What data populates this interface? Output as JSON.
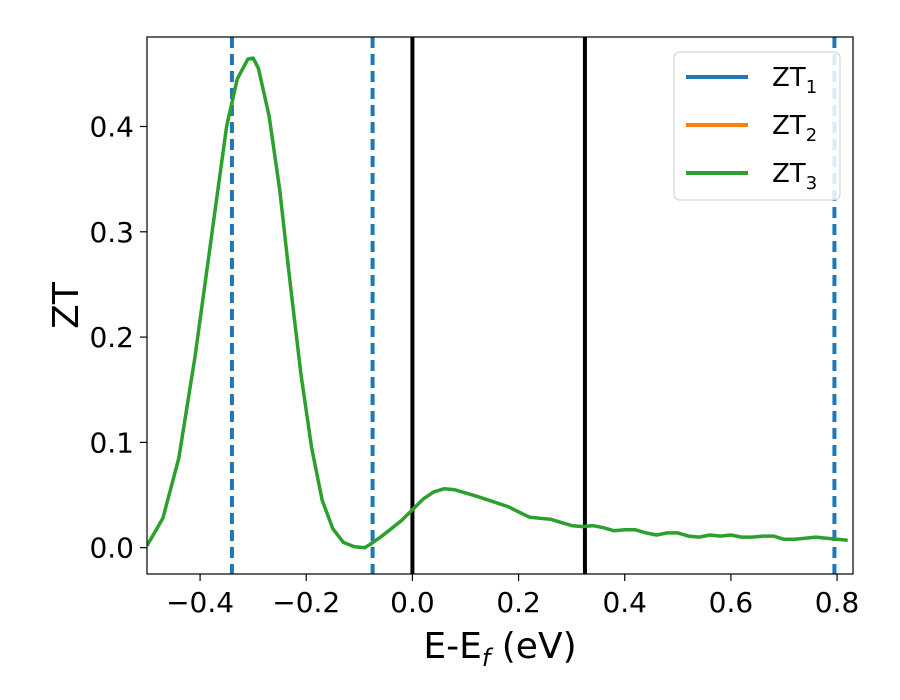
{
  "chart_data": {
    "type": "line",
    "title": "",
    "xlabel": {
      "main": "E-E",
      "sub": "f",
      "unit": " (eV)"
    },
    "ylabel": "ZT",
    "xlim": [
      -0.5,
      0.83
    ],
    "ylim": [
      -0.025,
      0.485
    ],
    "xticks": [
      -0.4,
      -0.2,
      0.0,
      0.2,
      0.4,
      0.6,
      0.8
    ],
    "xtick_labels": [
      "−0.4",
      "−0.2",
      "0.0",
      "0.2",
      "0.4",
      "0.6",
      "0.8"
    ],
    "yticks": [
      0.0,
      0.1,
      0.2,
      0.3,
      0.4
    ],
    "ytick_labels": [
      "0.0",
      "0.1",
      "0.2",
      "0.3",
      "0.4"
    ],
    "grid": false,
    "legend_position": "top-right",
    "series": [
      {
        "name": "ZT",
        "sub": "1",
        "color": "#1f77b4"
      },
      {
        "name": "ZT",
        "sub": "2",
        "color": "#ff7f0e"
      },
      {
        "name": "ZT",
        "sub": "3",
        "color": "#2ca02c",
        "x": [
          -0.5,
          -0.47,
          -0.44,
          -0.41,
          -0.38,
          -0.35,
          -0.33,
          -0.31,
          -0.3,
          -0.29,
          -0.27,
          -0.25,
          -0.23,
          -0.21,
          -0.19,
          -0.17,
          -0.15,
          -0.13,
          -0.11,
          -0.09,
          -0.08,
          -0.06,
          -0.04,
          -0.02,
          0.0,
          0.02,
          0.04,
          0.06,
          0.08,
          0.1,
          0.12,
          0.15,
          0.18,
          0.2,
          0.22,
          0.24,
          0.26,
          0.28,
          0.3,
          0.32,
          0.34,
          0.36,
          0.38,
          0.4,
          0.42,
          0.44,
          0.46,
          0.48,
          0.5,
          0.52,
          0.54,
          0.56,
          0.58,
          0.6,
          0.62,
          0.64,
          0.66,
          0.68,
          0.7,
          0.72,
          0.74,
          0.76,
          0.78,
          0.8,
          0.82
        ],
        "y": [
          0.002,
          0.028,
          0.085,
          0.18,
          0.29,
          0.4,
          0.445,
          0.464,
          0.465,
          0.455,
          0.41,
          0.34,
          0.25,
          0.165,
          0.095,
          0.045,
          0.018,
          0.005,
          0.001,
          0.0,
          0.003,
          0.01,
          0.018,
          0.026,
          0.036,
          0.046,
          0.053,
          0.056,
          0.055,
          0.052,
          0.049,
          0.044,
          0.039,
          0.034,
          0.029,
          0.028,
          0.027,
          0.024,
          0.021,
          0.02,
          0.021,
          0.019,
          0.016,
          0.017,
          0.017,
          0.014,
          0.012,
          0.014,
          0.014,
          0.011,
          0.01,
          0.012,
          0.011,
          0.012,
          0.01,
          0.01,
          0.011,
          0.011,
          0.008,
          0.008,
          0.009,
          0.01,
          0.009,
          0.008,
          0.007
        ]
      }
    ],
    "vlines": [
      {
        "x": -0.34,
        "style": "dashed",
        "color": "#1f77b4"
      },
      {
        "x": -0.075,
        "style": "dashed",
        "color": "#1f77b4"
      },
      {
        "x": 0.0,
        "style": "solid",
        "color": "#000000"
      },
      {
        "x": 0.325,
        "style": "solid",
        "color": "#000000"
      },
      {
        "x": 0.795,
        "style": "dashed",
        "color": "#1f77b4"
      }
    ]
  }
}
